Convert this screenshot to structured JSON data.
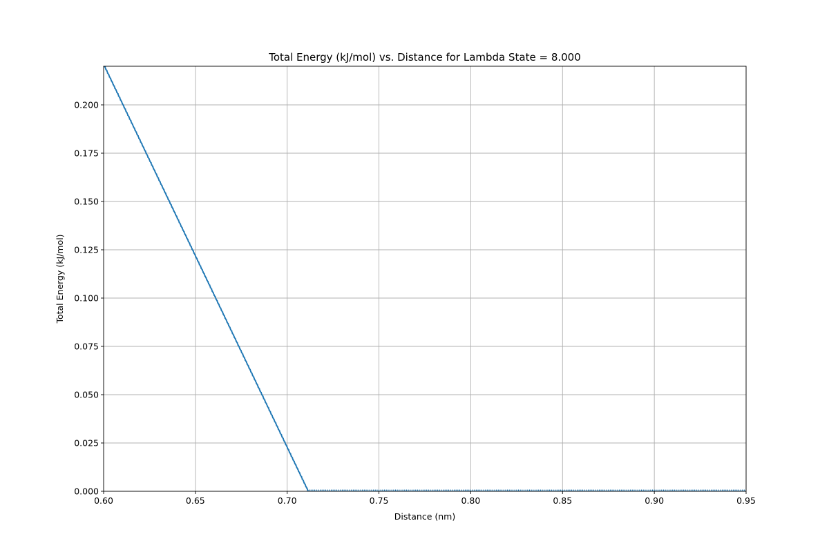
{
  "chart_data": {
    "type": "line",
    "title": "Total Energy (kJ/mol) vs. Distance for Lambda State = 8.000",
    "xlabel": "Distance (nm)",
    "ylabel": "Total Energy (kJ/mol)",
    "xlim": [
      0.6,
      0.95
    ],
    "ylim": [
      0.0,
      0.22
    ],
    "grid": true,
    "x_ticks": [
      "0.60",
      "0.65",
      "0.70",
      "0.75",
      "0.80",
      "0.85",
      "0.90",
      "0.95"
    ],
    "y_ticks": [
      "0.000",
      "0.025",
      "0.050",
      "0.075",
      "0.100",
      "0.125",
      "0.150",
      "0.175",
      "0.200"
    ],
    "series": [
      {
        "color": "#1f77b4",
        "marker": "small vertical tick",
        "x": [
          0.6,
          0.7115,
          0.95
        ],
        "y": [
          0.221,
          0.0,
          0.0
        ]
      }
    ]
  }
}
